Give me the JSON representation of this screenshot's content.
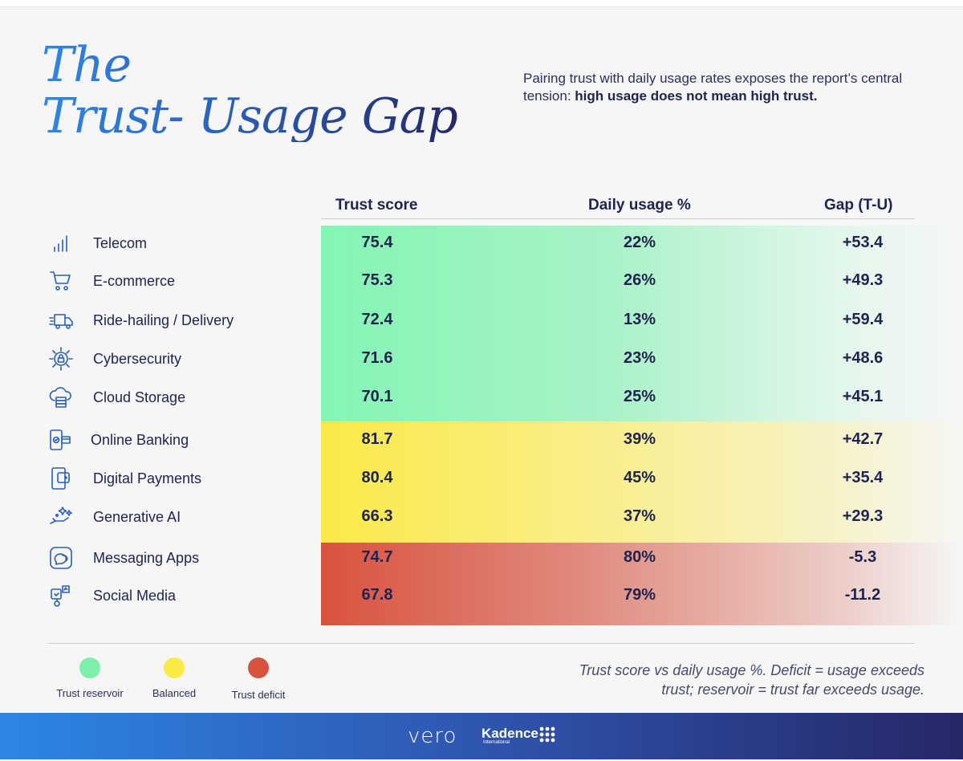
{
  "title": {
    "line1": "The",
    "line2": "Trust- Usage Gap"
  },
  "intro": {
    "text": "Pairing trust with daily usage rates exposes the report’s central tension: ",
    "emphasis": "high usage does not mean high trust."
  },
  "columns": {
    "trust": "Trust score",
    "usage": "Daily usage %",
    "gap": "Gap (T-U)"
  },
  "chart_data": {
    "type": "table",
    "categories": [
      "Telecom",
      "E-commerce",
      "Ride-hailing / Delivery",
      "Cybersecurity",
      "Cloud Storage",
      "Online Banking",
      "Digital Payments",
      "Generative AI",
      "Messaging Apps",
      "Social Media"
    ],
    "series": [
      {
        "name": "Trust score",
        "values": [
          75.4,
          75.3,
          72.4,
          71.6,
          70.1,
          81.7,
          80.4,
          66.3,
          74.7,
          67.8
        ]
      },
      {
        "name": "Daily usage %",
        "values": [
          22,
          26,
          13,
          23,
          25,
          39,
          45,
          37,
          80,
          79
        ]
      },
      {
        "name": "Gap (T-U)",
        "values": [
          53.4,
          49.3,
          59.4,
          48.6,
          45.1,
          42.7,
          35.4,
          29.3,
          -5.3,
          -11.2
        ]
      }
    ],
    "groups": [
      "Trust reservoir",
      "Trust reservoir",
      "Trust reservoir",
      "Trust reservoir",
      "Trust reservoir",
      "Balanced",
      "Balanced",
      "Balanced",
      "Trust deficit",
      "Trust deficit"
    ]
  },
  "rows": [
    {
      "name": "Telecom",
      "trust": "75.4",
      "usage": "22%",
      "gap": "+53.4",
      "icon": "signal-bars-icon"
    },
    {
      "name": "E-commerce",
      "trust": "75.3",
      "usage": "26%",
      "gap": "+49.3",
      "icon": "shopping-cart-icon"
    },
    {
      "name": "Ride-hailing / Delivery",
      "trust": "72.4",
      "usage": "13%",
      "gap": "+59.4",
      "icon": "delivery-truck-icon"
    },
    {
      "name": "Cybersecurity",
      "trust": "71.6",
      "usage": "23%",
      "gap": "+48.6",
      "icon": "lock-network-icon"
    },
    {
      "name": "Cloud Storage",
      "trust": "70.1",
      "usage": "25%",
      "gap": "+45.1",
      "icon": "cloud-storage-icon"
    },
    {
      "name": "Online Banking",
      "trust": "81.7",
      "usage": "39%",
      "gap": "+42.7",
      "icon": "mobile-banking-icon"
    },
    {
      "name": "Digital Payments",
      "trust": "80.4",
      "usage": "45%",
      "gap": "+35.4",
      "icon": "mobile-wallet-icon"
    },
    {
      "name": "Generative AI",
      "trust": "66.3",
      "usage": "37%",
      "gap": "+29.3",
      "icon": "sparkle-hand-icon"
    },
    {
      "name": "Messaging Apps",
      "trust": "74.7",
      "usage": "80%",
      "gap": "-5.3",
      "icon": "chat-bubble-icon"
    },
    {
      "name": "Social Media",
      "trust": "67.8",
      "usage": "79%",
      "gap": "-11.2",
      "icon": "social-like-icon"
    }
  ],
  "legend": [
    {
      "label": "Trust reservoir",
      "color": "#7cf0aa"
    },
    {
      "label": "Balanced",
      "color": "#fbe948"
    },
    {
      "label": "Trust deficit",
      "color": "#d9523f"
    }
  ],
  "note": "Trust score vs daily usage %. Deficit = usage exceeds trust; reservoir = trust far exceeds usage.",
  "footer": {
    "brand1": "vero",
    "brand2": "Kadence",
    "brand2_sub": "International"
  }
}
